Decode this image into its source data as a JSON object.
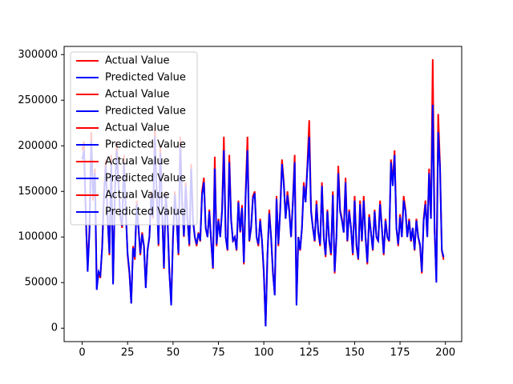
{
  "chart_data": {
    "type": "line",
    "x": [
      0,
      1,
      2,
      3,
      4,
      5,
      6,
      7,
      8,
      9,
      10,
      11,
      12,
      13,
      14,
      15,
      16,
      17,
      18,
      19,
      20,
      21,
      22,
      23,
      24,
      25,
      26,
      27,
      28,
      29,
      30,
      31,
      32,
      33,
      34,
      35,
      36,
      37,
      38,
      39,
      40,
      41,
      42,
      43,
      44,
      45,
      46,
      47,
      48,
      49,
      50,
      51,
      52,
      53,
      54,
      55,
      56,
      57,
      58,
      59,
      60,
      61,
      62,
      63,
      64,
      65,
      66,
      67,
      68,
      69,
      70,
      71,
      72,
      73,
      74,
      75,
      76,
      77,
      78,
      79,
      80,
      81,
      82,
      83,
      84,
      85,
      86,
      87,
      88,
      89,
      90,
      91,
      92,
      93,
      94,
      95,
      96,
      97,
      98,
      99,
      100,
      101,
      102,
      103,
      104,
      105,
      106,
      107,
      108,
      109,
      110,
      111,
      112,
      113,
      114,
      115,
      116,
      117,
      118,
      119,
      120,
      121,
      122,
      123,
      124,
      125,
      126,
      127,
      128,
      129,
      130,
      131,
      132,
      133,
      134,
      135,
      136,
      137,
      138,
      139,
      140,
      141,
      142,
      143,
      144,
      145,
      146,
      147,
      148,
      149,
      150,
      151,
      152,
      153,
      154,
      155,
      156,
      157,
      158,
      159,
      160,
      161,
      162,
      163,
      164,
      165,
      166,
      167,
      168,
      169,
      170,
      171,
      172,
      173,
      174,
      175,
      176,
      177,
      178,
      179,
      180,
      181,
      182,
      183,
      184,
      185,
      186,
      187,
      188,
      189,
      190,
      191,
      192,
      193,
      194,
      195,
      196,
      197,
      198,
      199
    ],
    "series": [
      {
        "name": "Actual Value",
        "color": "#ff0000",
        "values": [
          195000,
          205000,
          120000,
          65000,
          110000,
          215000,
          140000,
          175000,
          45000,
          60000,
          55000,
          90000,
          150000,
          185000,
          120000,
          80000,
          190000,
          50000,
          150000,
          205000,
          160000,
          120000,
          110000,
          190000,
          130000,
          80000,
          60000,
          28000,
          90000,
          75000,
          140000,
          110000,
          80000,
          105000,
          90000,
          45000,
          85000,
          100000,
          150000,
          120000,
          220000,
          150000,
          90000,
          200000,
          130000,
          65000,
          150000,
          120000,
          60000,
          28000,
          100000,
          150000,
          120000,
          80000,
          210000,
          140000,
          100000,
          160000,
          120000,
          90000,
          180000,
          120000,
          100000,
          90000,
          105000,
          95000,
          150000,
          165000,
          110000,
          100000,
          130000,
          95000,
          65000,
          188000,
          90000,
          120000,
          100000,
          130000,
          210000,
          100000,
          85000,
          190000,
          120000,
          95000,
          100000,
          85000,
          140000,
          105000,
          135000,
          70000,
          150000,
          210000,
          95000,
          110000,
          145000,
          150000,
          100000,
          90000,
          120000,
          95000,
          60000,
          3000,
          80000,
          130000,
          100000,
          60000,
          38000,
          145000,
          90000,
          130000,
          185000,
          160000,
          120000,
          150000,
          130000,
          100000,
          140000,
          190000,
          28000,
          100000,
          85000,
          110000,
          160000,
          140000,
          180000,
          228000,
          130000,
          110000,
          95000,
          140000,
          105000,
          90000,
          160000,
          100000,
          78000,
          130000,
          95000,
          80000,
          150000,
          60000,
          100000,
          178000,
          130000,
          120000,
          105000,
          165000,
          95000,
          130000,
          110000,
          80000,
          145000,
          90000,
          75000,
          140000,
          95000,
          145000,
          100000,
          70000,
          125000,
          105000,
          85000,
          130000,
          100000,
          95000,
          140000,
          110000,
          80000,
          120000,
          100000,
          95000,
          185000,
          160000,
          195000,
          110000,
          90000,
          125000,
          100000,
          145000,
          130000,
          100000,
          120000,
          95000,
          110000,
          85000,
          120000,
          100000,
          90000,
          60000,
          120000,
          140000,
          100000,
          175000,
          120000,
          295000,
          110000,
          52000,
          235000,
          180000,
          85000,
          75000
        ]
      },
      {
        "name": "Predicted Value",
        "color": "#0000ff",
        "values": [
          185000,
          195000,
          125000,
          62000,
          105000,
          205000,
          145000,
          170000,
          42000,
          62000,
          58000,
          88000,
          145000,
          178000,
          122000,
          82000,
          180000,
          48000,
          148000,
          195000,
          158000,
          122000,
          112000,
          182000,
          128000,
          82000,
          62000,
          27000,
          88000,
          78000,
          136000,
          110000,
          82000,
          103000,
          90000,
          44000,
          86000,
          100000,
          145000,
          122000,
          210000,
          148000,
          92000,
          192000,
          128000,
          66000,
          146000,
          118000,
          61000,
          25000,
          100000,
          146000,
          118000,
          82000,
          200000,
          138000,
          101000,
          156000,
          118000,
          92000,
          175000,
          118000,
          100000,
          92000,
          104000,
          96000,
          146000,
          160000,
          110000,
          100000,
          128000,
          96000,
          66000,
          175000,
          92000,
          118000,
          100000,
          128000,
          195000,
          100000,
          86000,
          182000,
          118000,
          96000,
          100000,
          86000,
          138000,
          106000,
          132000,
          72000,
          146000,
          195000,
          96000,
          110000,
          142000,
          148000,
          100000,
          92000,
          118000,
          96000,
          62000,
          2000,
          80000,
          126000,
          100000,
          62000,
          36000,
          142000,
          92000,
          128000,
          180000,
          158000,
          120000,
          146000,
          128000,
          100000,
          138000,
          182000,
          25000,
          100000,
          86000,
          110000,
          156000,
          138000,
          176000,
          210000,
          128000,
          110000,
          96000,
          136000,
          105000,
          92000,
          156000,
          100000,
          80000,
          128000,
          96000,
          82000,
          146000,
          62000,
          100000,
          170000,
          128000,
          118000,
          105000,
          160000,
          96000,
          128000,
          110000,
          82000,
          140000,
          92000,
          76000,
          136000,
          96000,
          140000,
          100000,
          72000,
          122000,
          105000,
          86000,
          128000,
          100000,
          96000,
          136000,
          110000,
          82000,
          118000,
          100000,
          96000,
          182000,
          156000,
          190000,
          110000,
          92000,
          122000,
          100000,
          140000,
          128000,
          100000,
          118000,
          96000,
          110000,
          86000,
          118000,
          100000,
          92000,
          62000,
          118000,
          136000,
          100000,
          170000,
          120000,
          245000,
          110000,
          50000,
          215000,
          176000,
          86000,
          78000
        ]
      }
    ],
    "legend": [
      {
        "name": "Actual Value",
        "color": "#ff0000"
      },
      {
        "name": "Predicted Value",
        "color": "#0000ff"
      },
      {
        "name": "Actual Value",
        "color": "#ff0000"
      },
      {
        "name": "Predicted Value",
        "color": "#0000ff"
      },
      {
        "name": "Actual Value",
        "color": "#ff0000"
      },
      {
        "name": "Predicted Value",
        "color": "#0000ff"
      },
      {
        "name": "Actual Value",
        "color": "#ff0000"
      },
      {
        "name": "Predicted Value",
        "color": "#0000ff"
      },
      {
        "name": "Actual Value",
        "color": "#ff0000"
      },
      {
        "name": "Predicted Value",
        "color": "#0000ff"
      }
    ],
    "legend_position": "upper left",
    "xlim": [
      -9.95,
      208.95
    ],
    "xticks": [
      0,
      25,
      50,
      75,
      100,
      125,
      150,
      175,
      200
    ],
    "ylim": [
      -14700,
      309000
    ],
    "yticks": [
      0,
      50000,
      100000,
      150000,
      200000,
      250000,
      300000
    ],
    "grid": false
  }
}
